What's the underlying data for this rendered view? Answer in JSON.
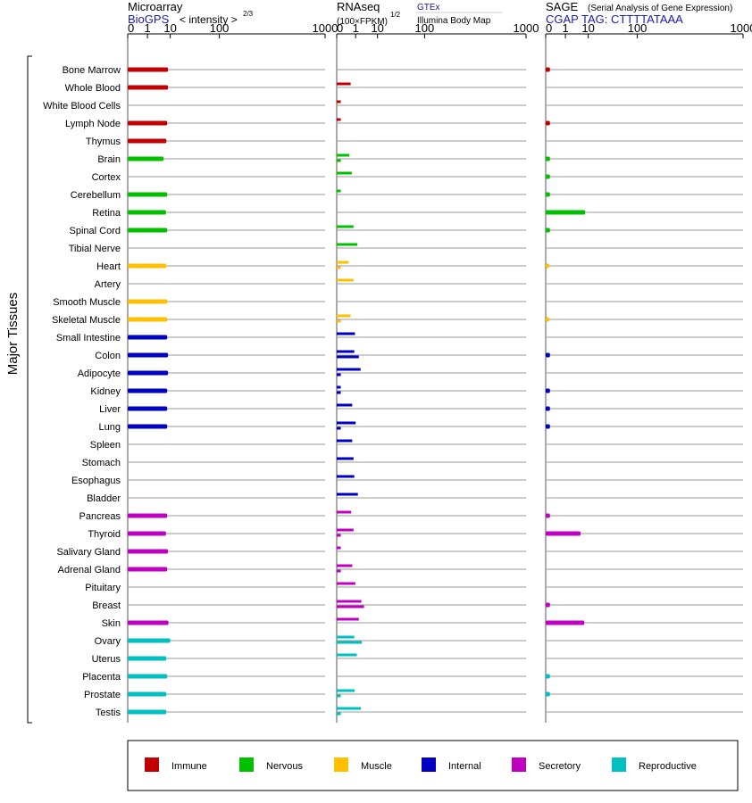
{
  "side_label": "Major Tissues",
  "panels": [
    {
      "id": "microarray",
      "title": "Microarray",
      "subtitle": "BioGPS",
      "note": "< intensity >",
      "note_exp": "2/3"
    },
    {
      "id": "rnaseq",
      "title": "RNAseq",
      "subtitle": "(100×FPKM)",
      "subtitle_exp": "1/2",
      "source_primary": "GTEx",
      "source_secondary": "Illumina Body Map"
    },
    {
      "id": "sage",
      "title": "SAGE",
      "title_note": "(Serial Analysis of Gene Expression)",
      "subtitle": "CGAP TAG: CTTTTATAAA"
    }
  ],
  "legend": [
    {
      "label": "Immune",
      "color": "#c00000"
    },
    {
      "label": "Nervous",
      "color": "#00c000"
    },
    {
      "label": "Muscle",
      "color": "#ffc000"
    },
    {
      "label": "Internal",
      "color": "#0000c0"
    },
    {
      "label": "Secretory",
      "color": "#c000c0"
    },
    {
      "label": "Reproductive",
      "color": "#00c0c0"
    }
  ],
  "chart_data": {
    "type": "bar",
    "orientation": "horizontal",
    "axis_ticks": [
      "0",
      "1",
      "10",
      "100",
      "1000"
    ],
    "axis_tick_values": [
      0,
      1,
      10,
      100,
      1000
    ],
    "xlim": [
      0,
      1000
    ],
    "scale": "power",
    "grid": false,
    "legend_position": "bottom",
    "categories": [
      "Bone Marrow",
      "Whole Blood",
      "White Blood Cells",
      "Lymph Node",
      "Thymus",
      "Brain",
      "Cortex",
      "Cerebellum",
      "Retina",
      "Spinal Cord",
      "Tibial Nerve",
      "Heart",
      "Artery",
      "Smooth Muscle",
      "Skeletal Muscle",
      "Small Intestine",
      "Colon",
      "Adipocyte",
      "Kidney",
      "Liver",
      "Lung",
      "Spleen",
      "Stomach",
      "Esophagus",
      "Bladder",
      "Pancreas",
      "Thyroid",
      "Salivary Gland",
      "Adrenal Gland",
      "Pituitary",
      "Breast",
      "Skin",
      "Ovary",
      "Uterus",
      "Placenta",
      "Prostate",
      "Testis"
    ],
    "groups": [
      "Immune",
      "Immune",
      "Immune",
      "Immune",
      "Immune",
      "Nervous",
      "Nervous",
      "Nervous",
      "Nervous",
      "Nervous",
      "Nervous",
      "Muscle",
      "Muscle",
      "Muscle",
      "Muscle",
      "Internal",
      "Internal",
      "Internal",
      "Internal",
      "Internal",
      "Internal",
      "Internal",
      "Internal",
      "Internal",
      "Internal",
      "Secretory",
      "Secretory",
      "Secretory",
      "Secretory",
      "Secretory",
      "Secretory",
      "Secretory",
      "Reproductive",
      "Reproductive",
      "Reproductive",
      "Reproductive",
      "Reproductive"
    ],
    "series": [
      {
        "name": "Microarray",
        "values": [
          8.5,
          8.5,
          null,
          8.0,
          7.5,
          6.0,
          null,
          8.0,
          7.3,
          8.0,
          null,
          7.5,
          null,
          8.0,
          8.0,
          8.0,
          8.5,
          8.5,
          8.0,
          8.0,
          8.0,
          null,
          null,
          null,
          null,
          8.0,
          7.3,
          8.5,
          8.0,
          null,
          null,
          8.8,
          10.0,
          7.5,
          8.0,
          7.5,
          7.5
        ]
      },
      {
        "name": "RNAseq GTEx",
        "values": [
          null,
          0.4,
          0.01,
          0.01,
          null,
          0.3,
          0.5,
          0.01,
          null,
          0.7,
          1.3,
          0.25,
          0.7,
          null,
          0.4,
          0.9,
          0.8,
          2.0,
          0.01,
          0.55,
          1.0,
          0.55,
          0.7,
          0.8,
          1.4,
          0.45,
          0.7,
          0.01,
          0.55,
          0.95,
          2.2,
          1.6,
          0.8,
          1.2,
          null,
          0.85,
          2.1
        ]
      },
      {
        "name": "RNAseq Illumina Body Map",
        "values": [
          null,
          null,
          null,
          null,
          null,
          0.01,
          null,
          null,
          null,
          null,
          null,
          0.01,
          null,
          null,
          0.01,
          null,
          1.6,
          0.01,
          0.01,
          null,
          0.01,
          null,
          null,
          null,
          null,
          null,
          0.01,
          null,
          0.01,
          null,
          3.0,
          null,
          2.3,
          null,
          null,
          0.01,
          0.01
        ]
      },
      {
        "name": "SAGE",
        "values": [
          0.01,
          null,
          null,
          0.01,
          null,
          0.01,
          0.01,
          0.01,
          8.0,
          0.01,
          null,
          0.005,
          null,
          null,
          0.005,
          null,
          0.01,
          null,
          0.01,
          0.01,
          0.01,
          null,
          null,
          null,
          null,
          0.01,
          5.5,
          null,
          null,
          null,
          0.01,
          7.5,
          null,
          null,
          0.01,
          0.01,
          null
        ]
      }
    ]
  }
}
